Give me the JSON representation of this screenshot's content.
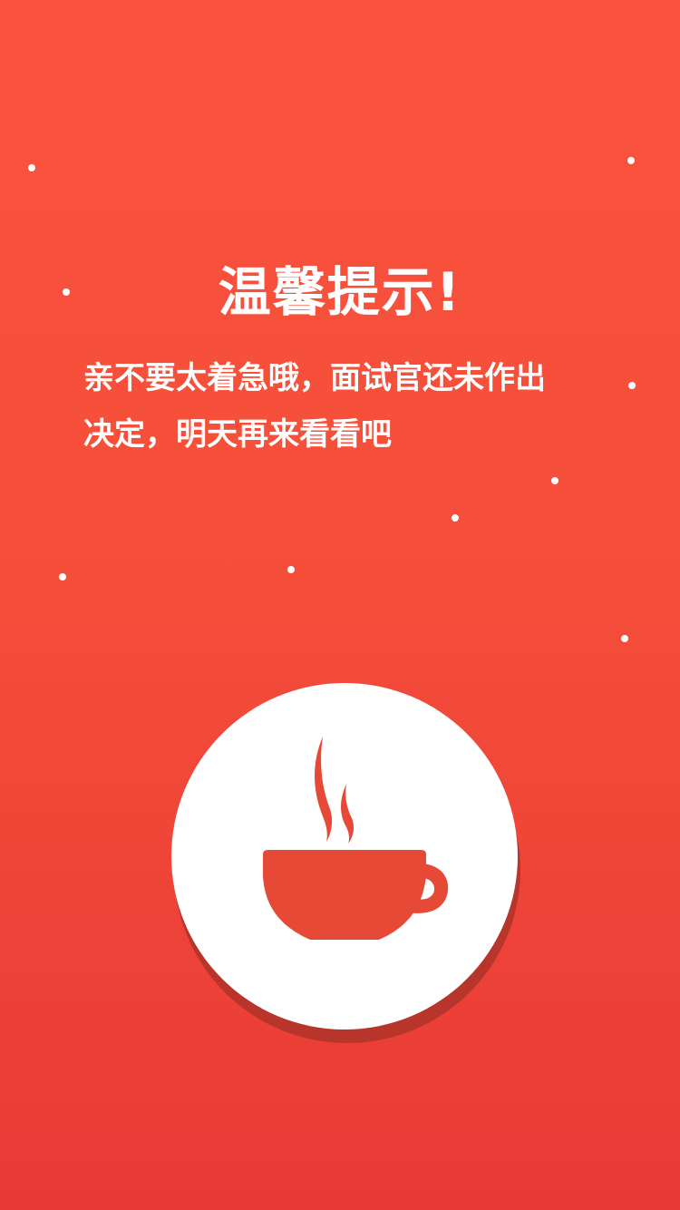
{
  "notice": {
    "title": "温馨提示!",
    "message_lines": [
      "亲不要太着急哦，面试官还未作出",
      "决定，明天再来看看吧"
    ]
  },
  "illustration": {
    "icon": "coffee-cup-icon",
    "cup_color": "#e64a36",
    "background_color": "#ffffff"
  },
  "theme": {
    "background_top": "#f9523c",
    "background_bottom": "#e83a35"
  }
}
